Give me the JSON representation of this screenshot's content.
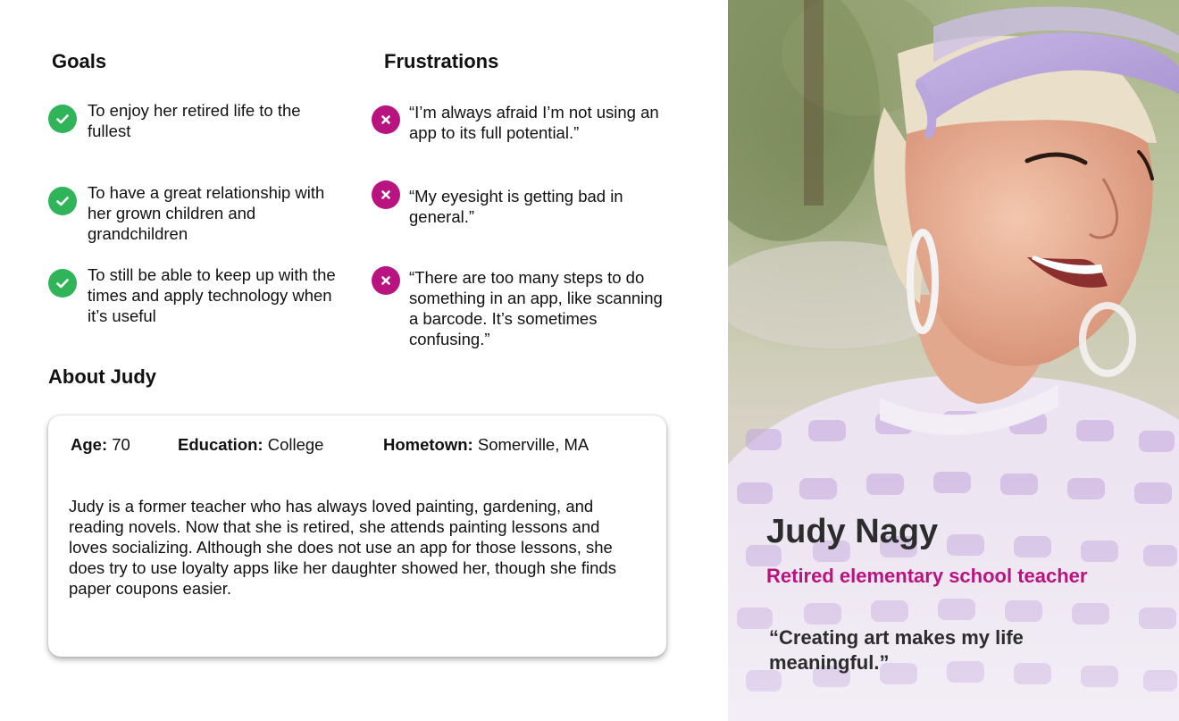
{
  "goals": {
    "title": "Goals",
    "items": [
      "To enjoy her retired life to the fullest",
      "To have a great relationship with her grown children and grandchildren",
      "To still be able to keep up with the times and apply technology when it’s useful"
    ]
  },
  "frustrations": {
    "title": "Frustrations",
    "items": [
      "“I’m always afraid I’m not using an app to its full potential.”",
      "“My eyesight is getting bad in general.”",
      "“There are too many steps to do something in an app, like scanning a barcode. It’s sometimes confusing.”"
    ]
  },
  "about": {
    "title": "About Judy",
    "age_label": "Age:",
    "age_value": "70",
    "education_label": "Education:",
    "education_value": "College",
    "hometown_label": "Hometown:",
    "hometown_value": "Somerville, MA",
    "bio": "Judy is a former teacher who has always loved painting, gardening, and reading novels. Now that she is retired, she attends painting lessons and loves socializing. Although she does not use an app for those lessons, she does try to use loyalty apps like her daughter showed her, though she finds paper coupons easier."
  },
  "persona": {
    "name": "Judy Nagy",
    "role": "Retired elementary school teacher",
    "quote": "“Creating art makes my life meaningful.”"
  },
  "icons": {
    "goal": "check-circle-icon",
    "frustration": "x-circle-icon"
  },
  "colors": {
    "accent": "#b9137f",
    "check": "#2fb45a",
    "text": "#111111"
  }
}
